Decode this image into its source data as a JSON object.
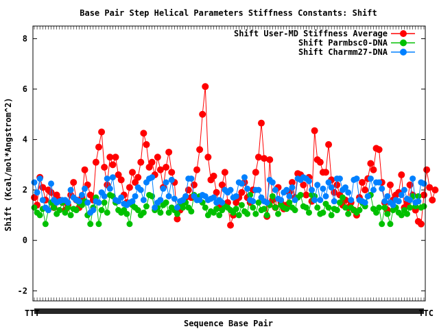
{
  "chart_data": {
    "type": "line",
    "title": "Base Pair Step Helical Parameters Stiffness Constants: Shift",
    "xlabel": "Sequence Base Pair",
    "ylabel": "Shift (Kcal/mol*Angstrom^2)",
    "ylim": [
      -2.4,
      8.5
    ],
    "yticks": [
      -2,
      0,
      2,
      4,
      6,
      8
    ],
    "grid": false,
    "legend_position": "top-right",
    "x_tick_labels_left": "TTT",
    "x_tick_labels_right": "TTC",
    "n_points": 140,
    "series": [
      {
        "name": "Shift User-MD Stiffness Average",
        "color": "#ff0000",
        "values": [
          1.7,
          1.4,
          2.5,
          2.1,
          1.6,
          2.0,
          1.9,
          1.3,
          1.8,
          1.6,
          1.5,
          1.2,
          1.4,
          1.8,
          2.3,
          1.6,
          1.3,
          1.7,
          2.8,
          2.2,
          1.8,
          1.6,
          3.1,
          3.7,
          4.3,
          2.9,
          2.2,
          3.3,
          3.0,
          3.3,
          2.6,
          2.4,
          1.8,
          1.5,
          2.1,
          2.7,
          2.3,
          2.5,
          3.1,
          4.25,
          3.8,
          2.9,
          3.1,
          2.6,
          3.3,
          2.8,
          2.1,
          2.9,
          3.5,
          2.7,
          2.3,
          0.85,
          1.2,
          1.5,
          1.7,
          2.0,
          1.7,
          2.2,
          2.8,
          3.6,
          5.0,
          6.1,
          3.3,
          2.4,
          2.55,
          1.9,
          1.3,
          2.2,
          2.7,
          1.5,
          0.6,
          1.0,
          1.5,
          1.7,
          1.9,
          2.3,
          1.7,
          1.5,
          2.0,
          2.7,
          3.3,
          4.65,
          3.25,
          0.95,
          3.2,
          1.6,
          1.3,
          2.1,
          1.5,
          1.25,
          1.4,
          1.9,
          2.3,
          1.7,
          2.65,
          2.6,
          2.2,
          1.8,
          2.5,
          1.55,
          4.35,
          3.2,
          3.1,
          2.7,
          2.7,
          3.8,
          2.4,
          1.9,
          2.2,
          1.8,
          1.4,
          1.6,
          1.3,
          1.5,
          1.2,
          1.0,
          1.7,
          2.3,
          2.0,
          2.45,
          3.05,
          2.8,
          3.65,
          3.6,
          2.3,
          1.5,
          1.2,
          2.2,
          1.6,
          1.8,
          1.9,
          2.6,
          1.3,
          1.5,
          2.2,
          1.8,
          1.2,
          0.75,
          0.65,
          1.8,
          2.8,
          2.1,
          1.6,
          2.0
        ]
      },
      {
        "name": "Shift Parmbsc0-DNA",
        "color": "#00c000",
        "values": [
          1.3,
          1.1,
          1.0,
          1.25,
          0.65,
          1.2,
          1.5,
          1.3,
          1.05,
          1.2,
          1.5,
          1.1,
          1.3,
          1.0,
          1.25,
          1.2,
          1.5,
          1.4,
          1.55,
          1.0,
          0.65,
          1.3,
          1.7,
          0.65,
          1.2,
          1.5,
          1.1,
          1.8,
          1.75,
          1.5,
          1.2,
          1.1,
          1.2,
          1.05,
          0.65,
          1.4,
          1.3,
          1.2,
          1.0,
          1.1,
          1.35,
          1.8,
          1.75,
          1.2,
          1.3,
          1.1,
          1.4,
          1.5,
          1.1,
          1.3,
          1.2,
          1.05,
          1.4,
          1.3,
          1.5,
          1.3,
          1.15,
          1.8,
          1.6,
          1.75,
          1.5,
          1.3,
          1.0,
          1.15,
          1.1,
          1.25,
          1.0,
          1.2,
          1.35,
          1.3,
          1.2,
          1.1,
          1.25,
          1.0,
          1.4,
          1.15,
          1.05,
          1.8,
          1.3,
          1.05,
          1.5,
          1.2,
          1.25,
          1.0,
          1.4,
          1.75,
          1.3,
          1.05,
          1.4,
          1.3,
          1.25,
          1.5,
          1.3,
          1.2,
          1.7,
          1.8,
          1.35,
          1.3,
          1.1,
          1.8,
          1.75,
          1.3,
          1.05,
          1.1,
          1.45,
          1.3,
          1.0,
          1.25,
          1.2,
          1.5,
          1.7,
          1.3,
          1.05,
          1.3,
          1.2,
          1.1,
          1.2,
          1.5,
          1.35,
          1.75,
          1.8,
          1.25,
          1.1,
          1.3,
          0.65,
          1.3,
          1.05,
          0.65,
          1.2,
          1.3,
          1.1,
          1.0,
          1.2,
          1.05,
          1.3,
          1.75,
          1.35,
          1.75,
          1.3,
          1.35
        ]
      },
      {
        "name": "Shift Charmm27-DNA",
        "color": "#0080ff",
        "values": [
          2.3,
          1.9,
          2.45,
          1.6,
          1.3,
          1.2,
          2.25,
          1.6,
          1.5,
          1.55,
          1.6,
          1.6,
          1.5,
          2.0,
          1.7,
          1.6,
          1.55,
          1.8,
          2.05,
          1.5,
          1.1,
          1.2,
          1.55,
          1.5,
          1.9,
          1.75,
          2.45,
          2.05,
          2.5,
          1.6,
          1.55,
          1.7,
          1.45,
          1.4,
          1.5,
          1.55,
          1.75,
          2.1,
          2.0,
          1.6,
          2.3,
          2.45,
          2.5,
          1.3,
          1.5,
          1.6,
          2.05,
          2.3,
          1.75,
          2.4,
          1.65,
          1.3,
          1.55,
          1.6,
          1.75,
          2.45,
          2.45,
          1.75,
          1.6,
          1.6,
          1.8,
          1.75,
          1.6,
          1.65,
          1.7,
          1.5,
          1.6,
          1.5,
          2.0,
          1.9,
          2.0,
          1.7,
          1.75,
          2.3,
          2.25,
          2.5,
          2.05,
          1.6,
          1.55,
          2.0,
          2.0,
          1.7,
          1.55,
          1.5,
          2.4,
          2.3,
          2.0,
          1.65,
          1.6,
          1.9,
          2.0,
          1.75,
          2.1,
          1.6,
          2.45,
          2.4,
          2.5,
          2.45,
          2.35,
          2.0,
          1.6,
          2.2,
          1.6,
          2.05,
          1.75,
          2.3,
          2.1,
          1.55,
          2.45,
          2.45,
          2.0,
          2.1,
          1.9,
          1.6,
          2.4,
          2.45,
          1.6,
          1.55,
          1.5,
          1.75,
          2.45,
          2.0,
          2.3,
          2.3,
          2.05,
          1.55,
          1.75,
          1.5,
          1.4,
          1.6,
          1.55,
          1.8,
          2.0,
          1.65,
          1.6,
          2.45,
          1.5,
          1.55,
          2.3,
          2.25
        ]
      }
    ]
  }
}
